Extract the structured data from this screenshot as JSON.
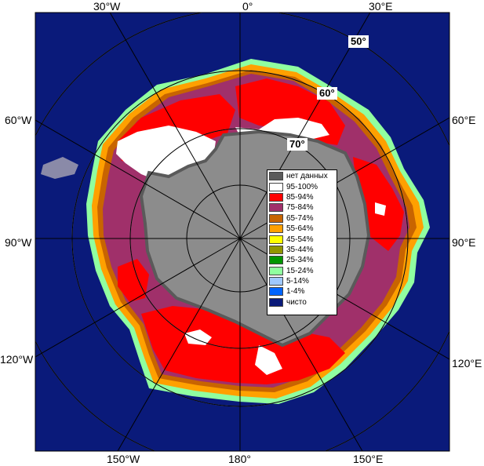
{
  "map": {
    "projection": "south polar stereographic",
    "ocean_color": "#0a1a7a",
    "land_color": "#8c8c8c",
    "ice_shelf_color": "#5a5a5a",
    "grid_color": "#9a9a9a"
  },
  "longitude_labels": {
    "top_left": "30°W",
    "top_center": "0°",
    "top_right": "30°E",
    "left_upper": "60°W",
    "right_upper": "60°E",
    "left_middle": "90°W",
    "right_middle": "90°E",
    "left_lower": "120°W",
    "right_lower": "120°E",
    "bottom_left": "150°W",
    "bottom_center": "180°",
    "bottom_right": "150°E"
  },
  "latitude_labels": {
    "lat50": "50°",
    "lat60": "60°",
    "lat70": "70°"
  },
  "legend": {
    "items": [
      {
        "label": "нет данных",
        "color": "#5a5a5a"
      },
      {
        "label": "95-100%",
        "color": "#ffffff"
      },
      {
        "label": "85-94%",
        "color": "#ff0000"
      },
      {
        "label": "75-84%",
        "color": "#a0306a"
      },
      {
        "label": "65-74%",
        "color": "#c86400"
      },
      {
        "label": "55-64%",
        "color": "#ffa000"
      },
      {
        "label": "45-54%",
        "color": "#ffff00"
      },
      {
        "label": "35-44%",
        "color": "#909600"
      },
      {
        "label": "25-34%",
        "color": "#009600"
      },
      {
        "label": "15-24%",
        "color": "#90ffa0"
      },
      {
        "label": "5-14%",
        "color": "#a0c8ff"
      },
      {
        "label": "1-4%",
        "color": "#0064ff"
      },
      {
        "label": "чисто",
        "color": "#0a1a7a"
      }
    ]
  }
}
